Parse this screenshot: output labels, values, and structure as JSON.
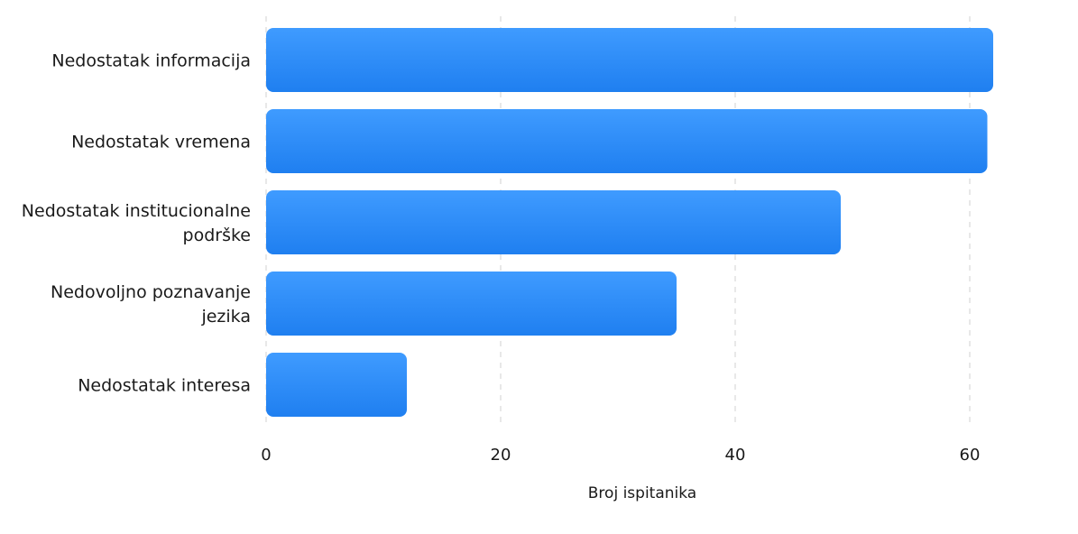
{
  "chart_data": {
    "type": "bar",
    "orientation": "horizontal",
    "categories": [
      [
        "Nedostatak informacija"
      ],
      [
        "Nedostatak vremena"
      ],
      [
        "Nedostatak institucionalne",
        "podrške"
      ],
      [
        "Nedovoljno poznavanje",
        "jezika"
      ],
      [
        "Nedostatak interesa"
      ]
    ],
    "values": [
      62,
      61.5,
      49,
      35,
      12
    ],
    "xlabel": "Broj ispitanika",
    "xlim": [
      0,
      62
    ],
    "xticks": [
      0,
      20,
      40,
      60
    ],
    "grid": true,
    "colors": {
      "bar_top": "#3f9bff",
      "bar_bottom": "#1f7ff0",
      "grid": "#d9d9d9",
      "text": "#1a1a1a"
    }
  }
}
